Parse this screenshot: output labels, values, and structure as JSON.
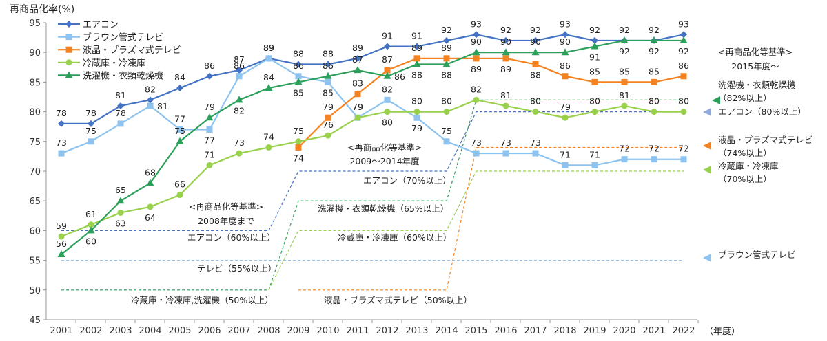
{
  "chart_data": {
    "type": "line",
    "ylabel": "再商品化率(%)",
    "xlabel": "（年度）",
    "ylim": [
      45,
      95
    ],
    "yticks": [
      45,
      50,
      55,
      60,
      65,
      70,
      75,
      80,
      85,
      90,
      95
    ],
    "x": [
      "2001",
      "2002",
      "2003",
      "2004",
      "2005",
      "2006",
      "2007",
      "2008",
      "2009",
      "2010",
      "2011",
      "2012",
      "2013",
      "2014",
      "2015",
      "2016",
      "2017",
      "2018",
      "2019",
      "2020",
      "2021",
      "2022"
    ],
    "legend_position": "top-left",
    "series": [
      {
        "name": "エアコン",
        "color": "#4472C4",
        "marker": "diamond",
        "values": [
          78,
          78,
          81,
          82,
          84,
          86,
          87,
          89,
          88,
          88,
          89,
          91,
          91,
          92,
          93,
          92,
          92,
          93,
          92,
          92,
          92,
          93
        ],
        "labels_pos": [
          "a",
          "a",
          "a",
          "a",
          "a",
          "a",
          "a",
          "a",
          "a",
          "a",
          "a",
          "a",
          "a",
          "a",
          "a",
          "a",
          "a",
          "a",
          "a",
          "a",
          "a",
          "a"
        ]
      },
      {
        "name": "ブラウン管式テレビ",
        "color": "#8DC3EE",
        "marker": "square",
        "values": [
          73,
          75,
          78,
          81,
          77,
          77,
          86,
          89,
          86,
          85,
          79,
          82,
          79,
          75,
          73,
          73,
          73,
          71,
          71,
          72,
          72,
          72
        ],
        "labels_pos": [
          "a",
          "a",
          "a",
          "r",
          "a",
          "b",
          "a",
          "a",
          "a",
          "b",
          "a",
          "a",
          "b",
          "a",
          "a",
          "a",
          "a",
          "a",
          "a",
          "a",
          "a",
          "a"
        ]
      },
      {
        "name": "液晶・プラズマ式テレビ",
        "color": "#F58220",
        "marker": "square",
        "start": 8,
        "values": [
          null,
          null,
          null,
          null,
          null,
          null,
          null,
          null,
          74,
          79,
          83,
          87,
          89,
          89,
          89,
          89,
          88,
          86,
          85,
          85,
          85,
          86
        ],
        "labels_pos": [
          "",
          "",
          "",
          "",
          "",
          "",
          "",
          "",
          "b",
          "a",
          "a",
          "a",
          "a",
          "a",
          "b",
          "b",
          "b",
          "a",
          "a",
          "a",
          "a",
          "a"
        ]
      },
      {
        "name": "冷蔵庫・冷凍庫",
        "color": "#99D14C",
        "marker": "circle",
        "values": [
          59,
          61,
          63,
          64,
          66,
          71,
          73,
          74,
          75,
          76,
          79,
          80,
          80,
          80,
          82,
          81,
          80,
          79,
          80,
          81,
          80,
          80
        ],
        "labels_pos": [
          "a",
          "a",
          "b",
          "b",
          "a",
          "a",
          "a",
          "a",
          "a",
          "a",
          "a",
          "b",
          "a",
          "a",
          "a",
          "a",
          "a",
          "a",
          "a",
          "a",
          "a",
          "a"
        ]
      },
      {
        "name": "洗濯機・衣類乾燥機",
        "color": "#2CA05A",
        "marker": "triangle",
        "values": [
          56,
          60,
          65,
          68,
          75,
          79,
          82,
          84,
          85,
          86,
          87,
          86,
          88,
          88,
          90,
          90,
          90,
          90,
          91,
          92,
          92,
          92
        ],
        "labels_pos": [
          "a",
          "b",
          "a",
          "a",
          "a",
          "a",
          "b",
          "a",
          "b",
          "a",
          "a",
          "r",
          "b",
          "b",
          "a",
          "a",
          "a",
          "a",
          "b",
          "b",
          "b",
          "b"
        ]
      }
    ],
    "standards": [
      {
        "label": "テレビ（55%以上）",
        "color": "#8DC3EE",
        "points": [
          [
            "2001",
            55
          ],
          [
            "2022",
            55
          ]
        ]
      },
      {
        "label": "エアコン（60%以上）",
        "color": "#4472C4",
        "points": [
          [
            "2001",
            60
          ],
          [
            "2008",
            60
          ],
          [
            "2009",
            70
          ],
          [
            "2014",
            70
          ],
          [
            "2015",
            80
          ],
          [
            "2022",
            80
          ]
        ]
      },
      {
        "label": "冷蔵庫・冷凍庫,洗濯機（50%以上）",
        "color": "#2CA05A",
        "points": [
          [
            "2001",
            50
          ],
          [
            "2008",
            50
          ],
          [
            "2009",
            65
          ],
          [
            "2014",
            65
          ],
          [
            "2015",
            82
          ],
          [
            "2022",
            82
          ]
        ]
      },
      {
        "label": "冷蔵庫・冷凍庫",
        "color": "#99D14C",
        "points": [
          [
            "2008",
            50
          ],
          [
            "2009",
            60
          ],
          [
            "2014",
            60
          ],
          [
            "2015",
            70
          ],
          [
            "2022",
            70
          ]
        ]
      },
      {
        "label": "液晶・プラズマ式テレビ（50%以上）",
        "color": "#F58220",
        "points": [
          [
            "2009",
            50
          ],
          [
            "2014",
            50
          ],
          [
            "2015",
            74
          ],
          [
            "2022",
            74
          ]
        ]
      }
    ],
    "annotations": {
      "std2008_title": "<再商品化等基準>",
      "std2008_sub": "2008年度まで",
      "std2009_title": "<再商品化等基準>",
      "std2009_sub": "2009～2014年度",
      "std2015_title": "<再商品化等基準>",
      "std2015_sub": "2015年度～",
      "aircon70": "エアコン（70%以上）",
      "washer65": "洗濯機・衣類乾燥機（65%以上）",
      "fridge60": "冷蔵庫・冷凍庫（60%以上）",
      "aircon60": "エアコン（60%以上）",
      "tv55": "テレビ（55%以上）",
      "fridge_washer50": "冷蔵庫・冷凍庫,洗濯機（50%以上）",
      "lcd50": "液晶・プラズマ式テレビ（50%以上）",
      "right_washer_1": "洗濯機・衣類乾燥機",
      "right_washer_2": "（82%以上）",
      "right_aircon": "エアコン（80%以上）",
      "right_lcd_1": "液晶・プラズマ式テレビ",
      "right_lcd_2": "（74%以上）",
      "right_fridge_1": "冷蔵庫・冷凍庫",
      "right_fridge_2": "（70%以上）",
      "right_crt": "ブラウン管式テレビ"
    }
  }
}
